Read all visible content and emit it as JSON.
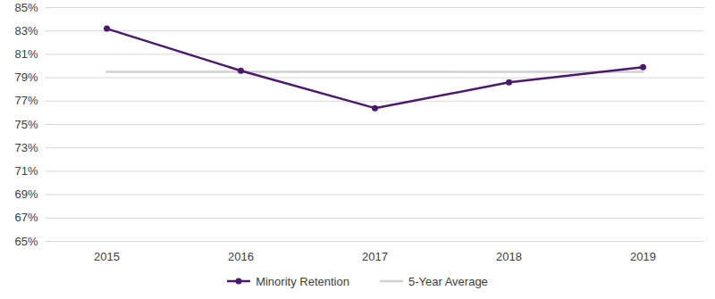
{
  "chart_data": {
    "type": "line",
    "categories": [
      "2015",
      "2016",
      "2017",
      "2018",
      "2019"
    ],
    "series": [
      {
        "name": "Minority Retention",
        "color": "#4b1a6e",
        "marker": "circle",
        "line_style": "solid",
        "values": [
          83.2,
          79.6,
          76.4,
          78.6,
          79.9
        ]
      },
      {
        "name": "5-Year Average",
        "color": "#d0d0d0",
        "marker": "none",
        "line_style": "solid",
        "values": [
          79.5,
          79.5,
          79.5,
          79.5,
          79.5
        ]
      }
    ],
    "ylim": [
      65,
      85
    ],
    "yticks": [
      {
        "value": 65,
        "label": "65%"
      },
      {
        "value": 67,
        "label": "67%"
      },
      {
        "value": 69,
        "label": "69%"
      },
      {
        "value": 71,
        "label": "71%"
      },
      {
        "value": 73,
        "label": "73%"
      },
      {
        "value": 75,
        "label": "75%"
      },
      {
        "value": 77,
        "label": "77%"
      },
      {
        "value": 79,
        "label": "79%"
      },
      {
        "value": 81,
        "label": "81%"
      },
      {
        "value": 83,
        "label": "83%"
      },
      {
        "value": 85,
        "label": "85%"
      }
    ],
    "grid": true,
    "legend": "bottom"
  }
}
